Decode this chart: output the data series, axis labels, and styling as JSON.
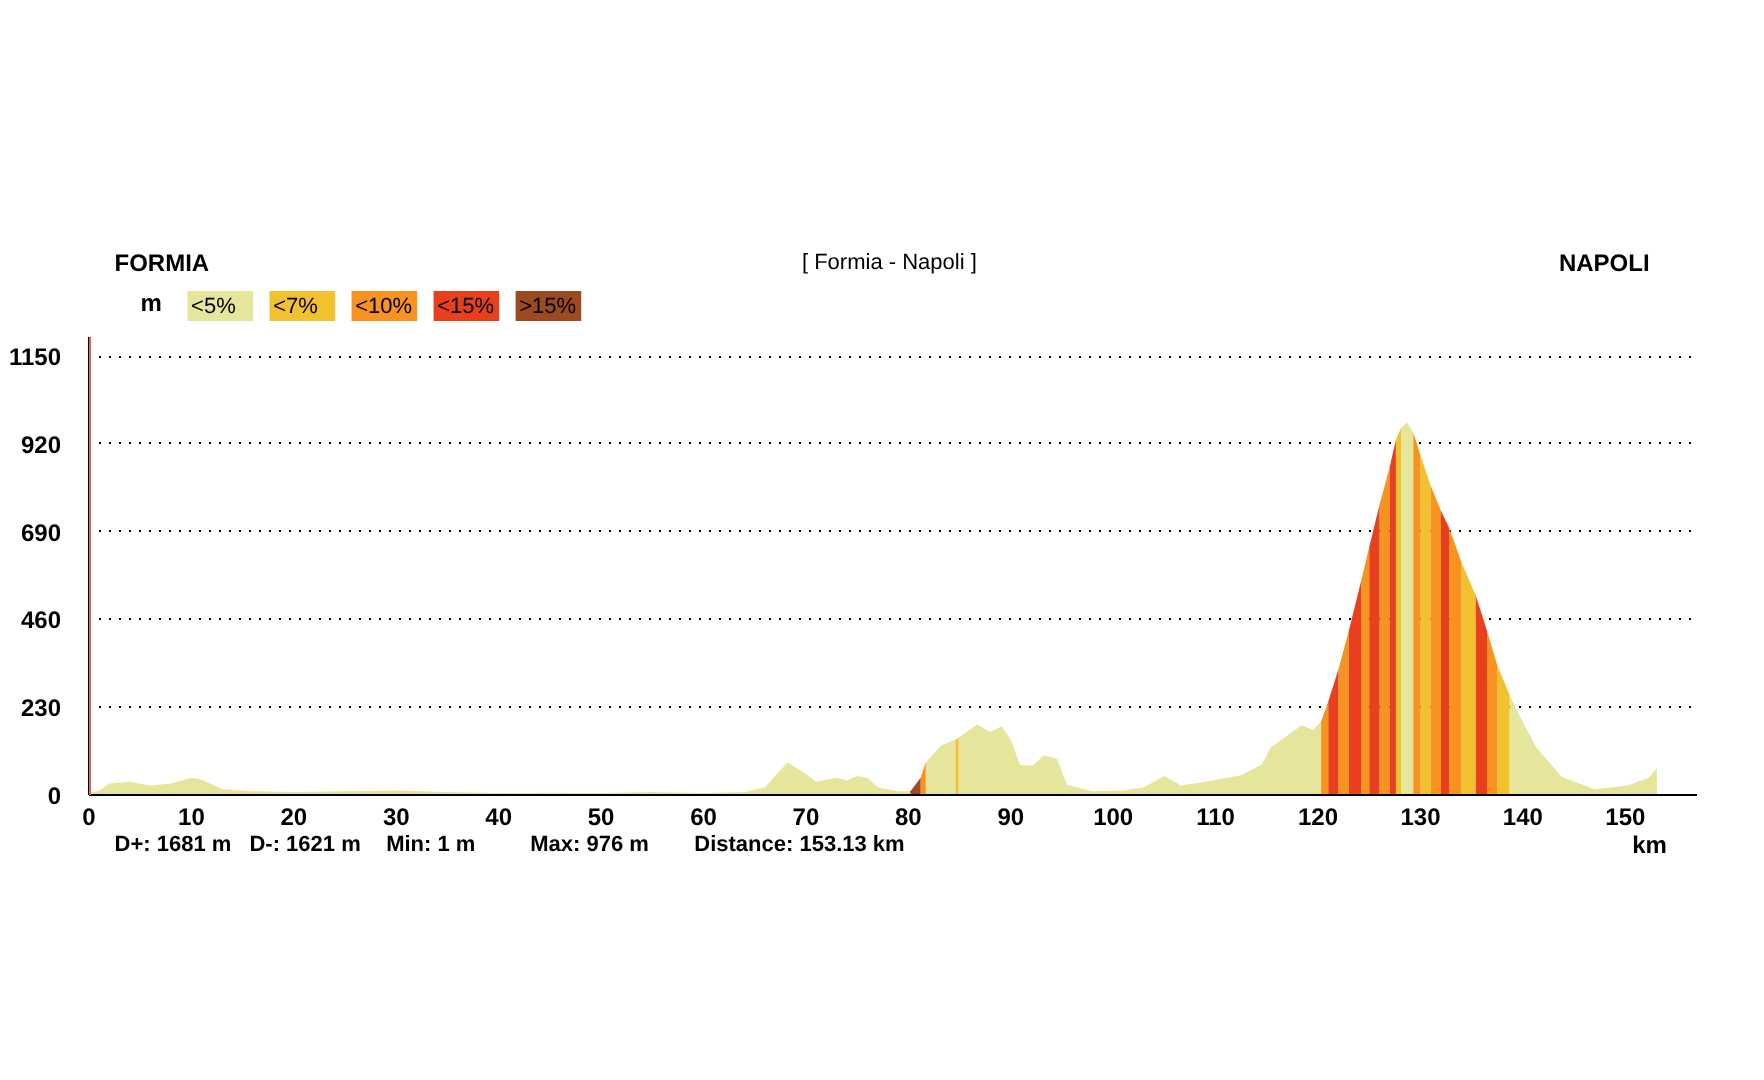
{
  "chart_data": {
    "type": "area",
    "title": "[ Formia - Napoli ]",
    "xlabel": "km",
    "ylabel": "m",
    "annotations": [
      "FORMIA",
      "NAPOLI",
      "D+: 1681 m",
      "D-: 1621 m",
      "Min: 1 m",
      "Max: 976 m",
      "Distance: 153.13 km"
    ],
    "xlim": [
      0,
      157
    ],
    "ylim": [
      0,
      1200
    ],
    "xticks": [
      0,
      10,
      20,
      30,
      40,
      50,
      60,
      70,
      80,
      90,
      100,
      110,
      120,
      130,
      140,
      150
    ],
    "yticks": [
      0,
      230,
      460,
      690,
      920,
      1150
    ],
    "grid": "y",
    "legend": "top left",
    "ref_lines": [
      {
        "axis": "x",
        "value": 0,
        "color": "#d9665a"
      }
    ],
    "series": [
      {
        "name": "<5%",
        "color": "#e5e59c",
        "x": [
          0,
          1,
          2,
          4,
          6,
          8,
          10,
          11,
          13,
          16,
          20,
          25,
          30,
          35,
          40,
          45,
          50,
          55,
          60,
          64,
          66,
          68.2,
          70,
          71,
          73,
          74,
          75,
          76,
          77,
          79,
          80.2,
          80.7,
          81.7,
          83.2,
          84.6,
          84.75,
          84.9,
          86.7,
          88,
          89.1,
          90,
          90.9,
          92.2,
          93.2,
          94.5,
          95.5,
          98,
          101,
          103,
          105,
          106.6,
          109,
          112.5,
          114.5,
          115.4,
          118.4,
          119.5,
          120.3,
          121,
          128.1,
          128.7,
          129.3,
          130,
          138.7,
          140,
          141.3,
          143.8,
          147,
          150.2,
          152.3,
          153.1
        ],
        "values": [
          5,
          12,
          30,
          35,
          25,
          30,
          45,
          40,
          15,
          10,
          8,
          10,
          12,
          8,
          5,
          6,
          5,
          8,
          5,
          8,
          20,
          85,
          55,
          35,
          45,
          38,
          50,
          45,
          20,
          10,
          10,
          null,
          85,
          130,
          145,
          null,
          150,
          185,
          165,
          180,
          145,
          78,
          78,
          104,
          95,
          26,
          10,
          12,
          20,
          50,
          25,
          35,
          52,
          80,
          125,
          183,
          170,
          193,
          null,
          962,
          976,
          950,
          null,
          262,
          190,
          125,
          47,
          15,
          25,
          45,
          70
        ]
      },
      {
        "name": "<7%",
        "color": "#f2c12e",
        "x": [
          84.6,
          84.9,
          85,
          127.6,
          128.1,
          129,
          130,
          131,
          132,
          134,
          135.4,
          136,
          137.5,
          138.7
        ],
        "values": [
          145,
          150,
          null,
          930,
          962,
          null,
          890,
          810,
          null,
          610,
          523,
          null,
          340,
          262
        ]
      },
      {
        "name": "<10%",
        "color": "#f7931e",
        "x": [
          81.2,
          81.7,
          90,
          120.3,
          121,
          121.5,
          122,
          123,
          123.5,
          124.2,
          125,
          125.5,
          126,
          127,
          128,
          129.3,
          130,
          130.5,
          131,
          132,
          132.5,
          132.8,
          134,
          135,
          136.5,
          137.5
        ],
        "values": [
          45,
          85,
          null,
          193,
          245,
          null,
          330,
          430,
          null,
          560,
          650,
          null,
          760,
          860,
          null,
          950,
          890,
          null,
          810,
          745,
          null,
          700,
          610,
          null,
          430,
          340
        ]
      },
      {
        "name": "<15%",
        "color": "#e8401c",
        "x": [
          121,
          122,
          122.5,
          123,
          124.2,
          124.5,
          125,
          126,
          126.5,
          127,
          127.6,
          130,
          132,
          132.8,
          133,
          135.4,
          136.5
        ],
        "values": [
          245,
          330,
          null,
          430,
          560,
          null,
          650,
          760,
          null,
          860,
          930,
          null,
          745,
          700,
          null,
          523,
          430
        ]
      },
      {
        "name": ">15%",
        "color": "#9c4a1f",
        "x": [
          80.2,
          81.2
        ],
        "values": [
          10,
          45
        ]
      }
    ]
  }
}
